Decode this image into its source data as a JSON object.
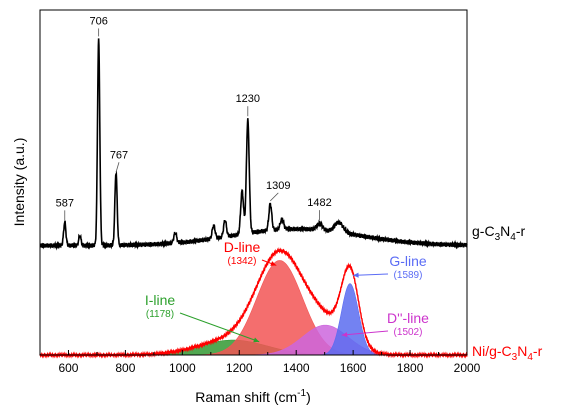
{
  "chart_data": {
    "type": "line",
    "xlabel": "Raman shift (cm",
    "xlabel_superscript": "-1",
    "xlabel_suffix": ")",
    "ylabel": "Intensity (a.u.)",
    "xlim": [
      500,
      2000
    ],
    "xticks": [
      600,
      800,
      1000,
      1200,
      1400,
      1600,
      1800,
      2000
    ],
    "yticks_shown": false,
    "grid": false,
    "series": [
      {
        "name_parts": [
          "g-C",
          "3",
          "N",
          "4",
          "-r"
        ],
        "color": "#000000",
        "baseline": 0.36,
        "peaks": [
          {
            "x": 587,
            "height": 0.07,
            "width": 4,
            "label": "587"
          },
          {
            "x": 706,
            "height": 0.62,
            "width": 4,
            "label": "706"
          },
          {
            "x": 767,
            "height": 0.22,
            "width": 4,
            "label": "767"
          },
          {
            "x": 1230,
            "height": 0.34,
            "width": 5,
            "label": "1230"
          },
          {
            "x": 1309,
            "height": 0.08,
            "width": 5,
            "label": "1309"
          },
          {
            "x": 1482,
            "height": 0.02,
            "width": 10,
            "label": "1482"
          }
        ],
        "minor_peaks": [
          {
            "x": 640,
            "height": 0.03,
            "width": 4
          },
          {
            "x": 975,
            "height": 0.03,
            "width": 5
          },
          {
            "x": 1110,
            "height": 0.04,
            "width": 5
          },
          {
            "x": 1150,
            "height": 0.05,
            "width": 5
          },
          {
            "x": 1210,
            "height": 0.13,
            "width": 5
          },
          {
            "x": 1350,
            "height": 0.03,
            "width": 6
          },
          {
            "x": 1550,
            "height": 0.03,
            "width": 15
          }
        ]
      },
      {
        "name_parts": [
          "Ni/g-C",
          "3",
          "N",
          "4",
          "-r"
        ],
        "color": "#ff0000",
        "baseline": 0.0,
        "components": [
          {
            "name": "I-line",
            "position": "(1178)",
            "x": 1178,
            "height": 0.045,
            "width": 120,
            "fill": "#339933",
            "label_color": "#2ca02c"
          },
          {
            "name": "D-line",
            "position": "(1342)",
            "x": 1342,
            "height": 0.285,
            "width": 80,
            "fill": "#f25555",
            "label_color": "#ff0000"
          },
          {
            "name": "D''-line",
            "position": "(1502)",
            "x": 1502,
            "height": 0.09,
            "width": 80,
            "fill": "#cc66dd",
            "label_color": "#cc33cc"
          },
          {
            "name": "G-line",
            "position": "(1589)",
            "x": 1589,
            "height": 0.215,
            "width": 30,
            "fill": "#5a6cf0",
            "label_color": "#5b6cf5"
          }
        ]
      }
    ]
  }
}
